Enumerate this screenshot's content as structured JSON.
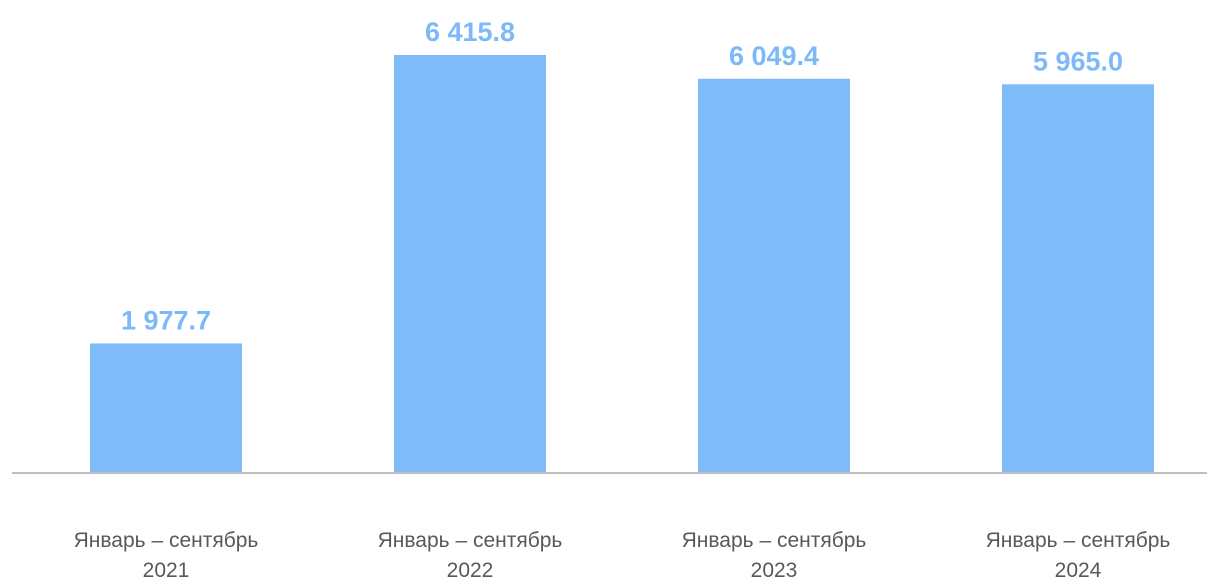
{
  "chart_data": {
    "type": "bar",
    "categories": [
      "Январь – сентябрь\n2021",
      "Январь – сентябрь\n2022",
      "Январь – сентябрь\n2023",
      "Январь – сентябрь\n2024"
    ],
    "values": [
      1977.7,
      6415.8,
      6049.4,
      5965.0
    ],
    "value_labels": [
      "1 977.7",
      "6 415.8",
      "6 049.4",
      "5 965.0"
    ],
    "color": "#7fbaf9"
  }
}
